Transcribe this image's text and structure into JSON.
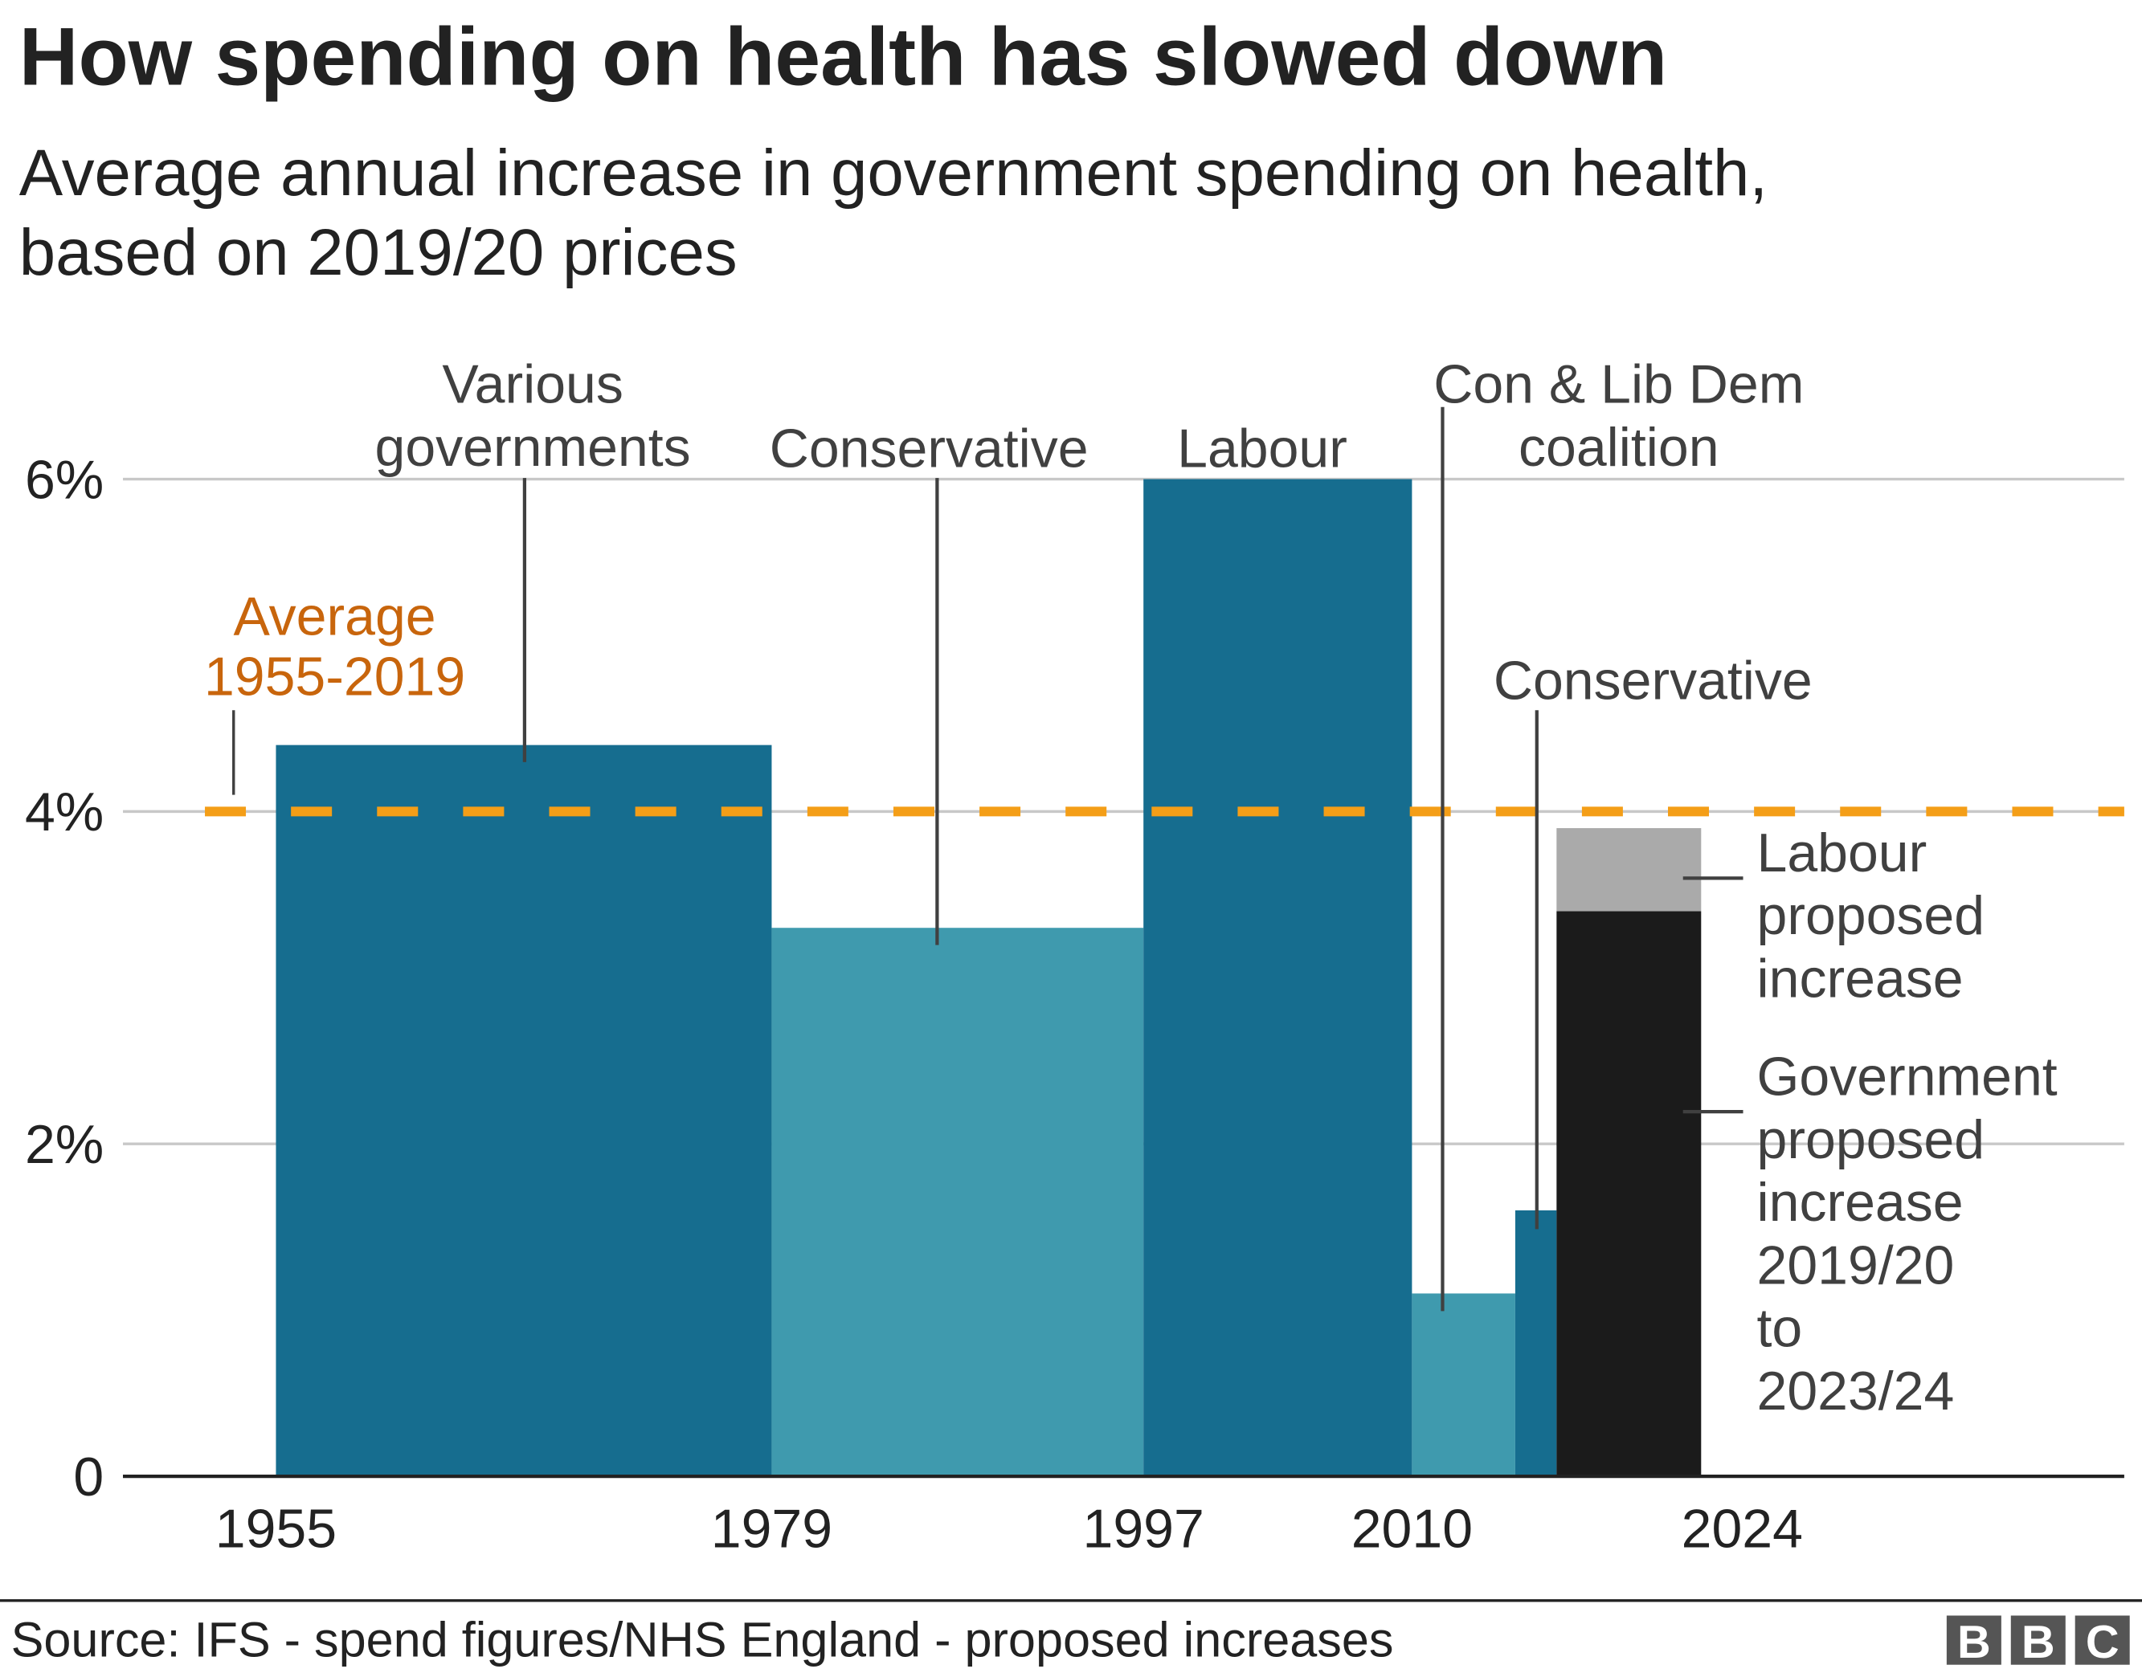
{
  "chart_data": {
    "type": "bar",
    "title": "How spending on health has slowed down",
    "subtitle_lines": [
      "Average annual increase in government spending on health,",
      "based on 2019/20 prices"
    ],
    "xlabel": "",
    "ylabel": "",
    "ylim": [
      0,
      6
    ],
    "xlim": [
      1948,
      2042
    ],
    "y_ticks": [
      {
        "value": 0,
        "label": "0"
      },
      {
        "value": 2,
        "label": "2%"
      },
      {
        "value": 4,
        "label": "4%"
      },
      {
        "value": 6,
        "label": "6%"
      }
    ],
    "x_ticks": [
      {
        "value": 1955,
        "label": "1955"
      },
      {
        "value": 1979,
        "label": "1979"
      },
      {
        "value": 1997,
        "label": "1997"
      },
      {
        "value": 2010,
        "label": "2010"
      },
      {
        "value": 2024,
        "label": "2024"
      }
    ],
    "grid": true,
    "bars": [
      {
        "period": "Various governments",
        "start": 1955,
        "end": 1979,
        "value": 4.4,
        "color": "#166d8f"
      },
      {
        "period": "Conservative",
        "start": 1979,
        "end": 1997,
        "value": 3.3,
        "color": "#3f9aae"
      },
      {
        "period": "Labour",
        "start": 1997,
        "end": 2010,
        "value": 6.0,
        "color": "#166d8f"
      },
      {
        "period": "Con & Lib Dem coalition",
        "start": 2010,
        "end": 2015,
        "value": 1.1,
        "color": "#3f9aae"
      },
      {
        "period": "Conservative",
        "start": 2015,
        "end": 2017,
        "value": 1.6,
        "color": "#166d8f"
      },
      {
        "period": "Government proposed increase 2019/20 to 2023/24",
        "start": 2017,
        "end": 2024,
        "value": 3.4,
        "color": "#1b1b1b"
      },
      {
        "period": "Labour proposed increase",
        "start": 2017,
        "end": 2024,
        "base": 3.4,
        "value": 3.9,
        "color": "#aaaaaa"
      }
    ],
    "average": {
      "value": 4.0,
      "label_lines": [
        "Average",
        "1955-2019"
      ],
      "color": "#f49e17",
      "label_color": "#c8650c"
    },
    "annotations": {
      "various": [
        "Various",
        "governments"
      ],
      "con1": [
        "Conservative"
      ],
      "labour": [
        "Labour"
      ],
      "coalition": [
        "Con & Lib Dem",
        "coalition"
      ],
      "con2": [
        "Conservative"
      ],
      "labour_prop": [
        "Labour",
        "proposed",
        "increase"
      ],
      "gov_prop": [
        "Government",
        "proposed",
        "increase",
        "2019/20",
        "to",
        "2023/24"
      ]
    }
  },
  "footer": {
    "source": "Source: IFS - spend figures/NHS England - proposed increases",
    "logo": "BBC"
  }
}
